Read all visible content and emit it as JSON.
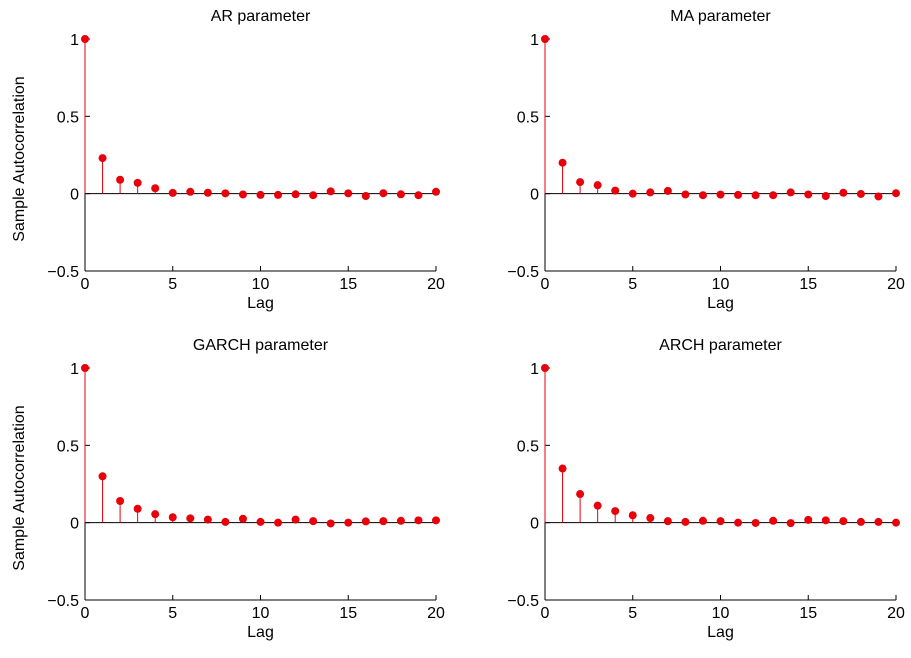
{
  "colors": {
    "stem": "#e8000b",
    "axis": "#000000",
    "background": "#ffffff"
  },
  "chart_data": [
    {
      "type": "stem",
      "title": "AR parameter",
      "xlabel": "Lag",
      "ylabel": "Sample Autocorrelation",
      "xlim": [
        0,
        20
      ],
      "ylim": [
        -0.5,
        1
      ],
      "xticks": [
        "0",
        "5",
        "10",
        "15",
        "20"
      ],
      "yticks": [
        "−0.5",
        "0",
        "0.5",
        "1"
      ],
      "grid": false,
      "x": [
        0,
        1,
        2,
        3,
        4,
        5,
        6,
        7,
        8,
        9,
        10,
        11,
        12,
        13,
        14,
        15,
        16,
        17,
        18,
        19,
        20
      ],
      "values": [
        1,
        0.23,
        0.09,
        0.07,
        0.035,
        0.005,
        0.012,
        0.006,
        0.002,
        -0.005,
        -0.008,
        -0.008,
        -0.004,
        -0.01,
        0.015,
        0.002,
        -0.015,
        0.003,
        -0.004,
        -0.01,
        0.012
      ]
    },
    {
      "type": "stem",
      "title": "MA parameter",
      "xlabel": "Lag",
      "ylabel": "",
      "xlim": [
        0,
        20
      ],
      "ylim": [
        -0.5,
        1
      ],
      "xticks": [
        "0",
        "5",
        "10",
        "15",
        "20"
      ],
      "yticks": [
        "−0.5",
        "0",
        "0.5",
        "1"
      ],
      "grid": false,
      "x": [
        0,
        1,
        2,
        3,
        4,
        5,
        6,
        7,
        8,
        9,
        10,
        11,
        12,
        13,
        14,
        15,
        16,
        17,
        18,
        19,
        20
      ],
      "values": [
        1,
        0.2,
        0.075,
        0.055,
        0.02,
        0.0,
        0.008,
        0.018,
        -0.005,
        -0.01,
        -0.006,
        -0.008,
        -0.01,
        -0.01,
        0.008,
        -0.005,
        -0.015,
        0.006,
        -0.002,
        -0.018,
        0.003
      ]
    },
    {
      "type": "stem",
      "title": "GARCH parameter",
      "xlabel": "Lag",
      "ylabel": "Sample Autocorrelation",
      "xlim": [
        0,
        20
      ],
      "ylim": [
        -0.5,
        1
      ],
      "xticks": [
        "0",
        "5",
        "10",
        "15",
        "20"
      ],
      "yticks": [
        "−0.5",
        "0",
        "0.5",
        "1"
      ],
      "grid": false,
      "x": [
        0,
        1,
        2,
        3,
        4,
        5,
        6,
        7,
        8,
        9,
        10,
        11,
        12,
        13,
        14,
        15,
        16,
        17,
        18,
        19,
        20
      ],
      "values": [
        1,
        0.3,
        0.14,
        0.09,
        0.055,
        0.035,
        0.028,
        0.02,
        0.005,
        0.025,
        0.005,
        0.0,
        0.02,
        0.01,
        -0.005,
        0.0,
        0.008,
        0.01,
        0.012,
        0.015,
        0.015
      ]
    },
    {
      "type": "stem",
      "title": "ARCH parameter",
      "xlabel": "Lag",
      "ylabel": "",
      "xlim": [
        0,
        20
      ],
      "ylim": [
        -0.5,
        1
      ],
      "xticks": [
        "0",
        "5",
        "10",
        "15",
        "20"
      ],
      "yticks": [
        "−0.5",
        "0",
        "0.5",
        "1"
      ],
      "grid": false,
      "x": [
        0,
        1,
        2,
        3,
        4,
        5,
        6,
        7,
        8,
        9,
        10,
        11,
        12,
        13,
        14,
        15,
        16,
        17,
        18,
        19,
        20
      ],
      "values": [
        1,
        0.35,
        0.185,
        0.11,
        0.075,
        0.048,
        0.03,
        0.01,
        0.005,
        0.012,
        0.01,
        0.0,
        -0.002,
        0.012,
        -0.003,
        0.018,
        0.015,
        0.01,
        0.005,
        0.005,
        0.0
      ]
    }
  ]
}
